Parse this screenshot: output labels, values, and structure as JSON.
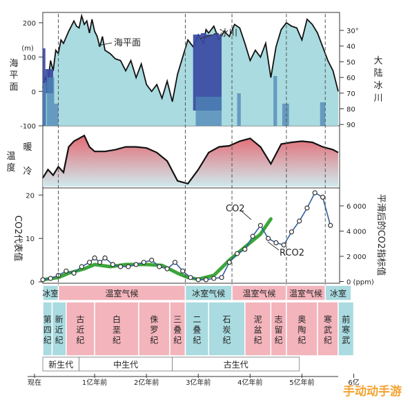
{
  "chart_data": [
    {
      "type": "area",
      "panel": "sea-level",
      "ylabel_left": "海平面",
      "yunit_left": "(m)",
      "yticks_left": [
        "200",
        "100",
        "0",
        "-100"
      ],
      "ylim_left": [
        -100,
        230
      ],
      "ylabel_right": "大陆冰川",
      "yticks_right": [
        "30°",
        "40",
        "50",
        "60",
        "70",
        "80",
        "90"
      ],
      "series": [
        {
          "name": "海平面",
          "color": "#a9dbe0",
          "x": [
            0,
            0.05,
            0.1,
            0.15,
            0.2,
            0.25,
            0.3,
            0.35,
            0.4,
            0.5,
            0.6,
            0.65,
            0.7,
            0.75,
            0.8,
            0.85,
            0.9,
            0.95,
            1,
            1.05,
            1.1,
            1.15,
            1.2,
            1.3,
            1.4,
            1.5,
            1.6,
            1.7,
            1.8,
            1.9,
            2,
            2.1,
            2.2,
            2.3,
            2.4,
            2.5,
            2.6,
            2.7,
            2.8,
            2.9,
            3,
            3.1,
            3.15,
            3.2,
            3.3,
            3.4,
            3.5,
            3.6,
            3.7,
            3.8,
            3.9,
            4,
            4.1,
            4.2,
            4.3,
            4.4,
            4.5,
            4.6,
            4.7,
            4.8,
            4.9,
            5,
            5.1,
            5.2,
            5.3,
            5.4,
            5.5,
            5.6,
            5.7
          ],
          "y": [
            10,
            40,
            30,
            90,
            60,
            120,
            110,
            150,
            140,
            175,
            205,
            190,
            185,
            220,
            195,
            205,
            170,
            210,
            175,
            160,
            130,
            160,
            120,
            110,
            95,
            90,
            60,
            90,
            40,
            80,
            20,
            0,
            20,
            -20,
            30,
            -30,
            50,
            100,
            150,
            130,
            165,
            140,
            180,
            170,
            190,
            150,
            175,
            160,
            195,
            185,
            140,
            90,
            120,
            100,
            140,
            40,
            130,
            180,
            200,
            190,
            185,
            150,
            210,
            195,
            170,
            130,
            90,
            60,
            0
          ]
        },
        {
          "name": "冰川",
          "color": "#3a4aa2"
        }
      ],
      "annotations": [
        "海平面",
        "冰川"
      ]
    },
    {
      "type": "area",
      "panel": "temperature",
      "ylabel": "温度",
      "labels": [
        "暖",
        "冷"
      ],
      "x": [
        0,
        0.1,
        0.2,
        0.3,
        0.4,
        0.5,
        0.6,
        0.7,
        0.8,
        0.9,
        1,
        1.2,
        1.4,
        1.6,
        1.8,
        2,
        2.2,
        2.4,
        2.6,
        2.8,
        3,
        3.2,
        3.4,
        3.6,
        3.8,
        4,
        4.2,
        4.4,
        4.6,
        4.8,
        5,
        5.2,
        5.4,
        5.6,
        5.7
      ],
      "y": [
        0.15,
        0.3,
        0.2,
        0.35,
        0.25,
        0.7,
        0.8,
        0.85,
        0.9,
        0.7,
        0.62,
        0.62,
        0.65,
        0.7,
        0.7,
        0.68,
        0.6,
        0.45,
        0.1,
        0.05,
        0.3,
        0.6,
        0.7,
        0.72,
        0.8,
        0.85,
        0.7,
        0.4,
        0.75,
        0.78,
        0.8,
        0.78,
        0.7,
        0.65,
        0.6
      ]
    },
    {
      "type": "line",
      "panel": "co2",
      "ylabel_left": "CO2代表值",
      "yticks_left": [
        "20",
        "10",
        "0"
      ],
      "ylim_left": [
        0,
        21
      ],
      "ylabel_right": "平滑后的CO2指标值",
      "yticks_right": [
        "6 000",
        "4 000",
        "2 000",
        "0 (ppm)"
      ],
      "series": [
        {
          "name": "CO2",
          "color": "#3aa63a",
          "x": [
            0,
            0.3,
            0.5,
            0.8,
            1,
            1.3,
            1.6,
            2,
            2.3,
            2.6,
            2.8,
            3,
            3.3,
            3.6,
            3.9,
            4.2,
            4.4
          ],
          "y": [
            0.5,
            1,
            2,
            3,
            4,
            3.5,
            4,
            4,
            3.8,
            2,
            1,
            0.6,
            1.5,
            5,
            8,
            11,
            14.5
          ]
        },
        {
          "name": "RCO2",
          "color": "#2f5fa0",
          "x": [
            0,
            0.15,
            0.3,
            0.45,
            0.6,
            0.75,
            0.9,
            1.0,
            1.1,
            1.2,
            1.35,
            1.5,
            1.65,
            1.8,
            1.95,
            2.1,
            2.25,
            2.4,
            2.55,
            2.7,
            2.85,
            3.0,
            3.15,
            3.3,
            3.45,
            3.6,
            3.75,
            3.9,
            4.05,
            4.2,
            4.35,
            4.5,
            4.65,
            4.8,
            4.95,
            5.1,
            5.25,
            5.4,
            5.55
          ],
          "y": [
            0.5,
            0.8,
            1.5,
            2.5,
            2,
            3.5,
            4.5,
            5.5,
            4.5,
            5.5,
            4,
            3.5,
            3.5,
            4,
            4.5,
            5,
            3.5,
            3,
            4.5,
            2.5,
            1,
            0.5,
            0.5,
            0.8,
            1,
            4.5,
            6.5,
            7.5,
            10.5,
            13,
            10,
            9,
            8.5,
            11.5,
            14,
            17,
            20.5,
            19.5,
            13
          ]
        }
      ],
      "annotations": [
        "CO2",
        "RCO2"
      ]
    }
  ],
  "climate_row": [
    {
      "label": "冰室",
      "color": "#a9dbe0"
    },
    {
      "label": "温室气候",
      "color": "#f3b4bc"
    },
    {
      "label": "冰室气候",
      "color": "#a9dbe0"
    },
    {
      "label": "温室气候",
      "color": "#f3b4bc"
    },
    {
      "label": "温室气候",
      "color": "#f3b4bc"
    },
    {
      "label": "冰室",
      "color": "#a9dbe0"
    }
  ],
  "periods": [
    {
      "label": "第四纪",
      "color": "#a9dbe0"
    },
    {
      "label": "新近纪",
      "color": "#a9dbe0"
    },
    {
      "label": "古近纪",
      "color": "#f3b4bc"
    },
    {
      "label": "白垩纪",
      "color": "#f3b4bc"
    },
    {
      "label": "侏罗纪",
      "color": "#f3b4bc"
    },
    {
      "label": "三叠纪",
      "color": "#f3b4bc"
    },
    {
      "label": "二叠纪",
      "color": "#a9dbe0"
    },
    {
      "label": "石炭纪",
      "color": "#a9dbe0"
    },
    {
      "label": "泥盆纪",
      "color": "#f3b4bc"
    },
    {
      "label": "志留纪",
      "color": "#f3b4bc"
    },
    {
      "label": "奥陶纪",
      "color": "#f3b4bc"
    },
    {
      "label": "寒武纪",
      "color": "#f3b4bc"
    },
    {
      "label": "前寒武",
      "color": "#a9dbe0"
    }
  ],
  "eras": [
    {
      "label": "新生代"
    },
    {
      "label": "中生代"
    },
    {
      "label": "古生代"
    }
  ],
  "time_axis": [
    "现在",
    "1亿年前",
    "2亿年前",
    "3亿年前",
    "4亿年前",
    "5亿年前",
    "6亿"
  ],
  "watermark": "手动动手游"
}
